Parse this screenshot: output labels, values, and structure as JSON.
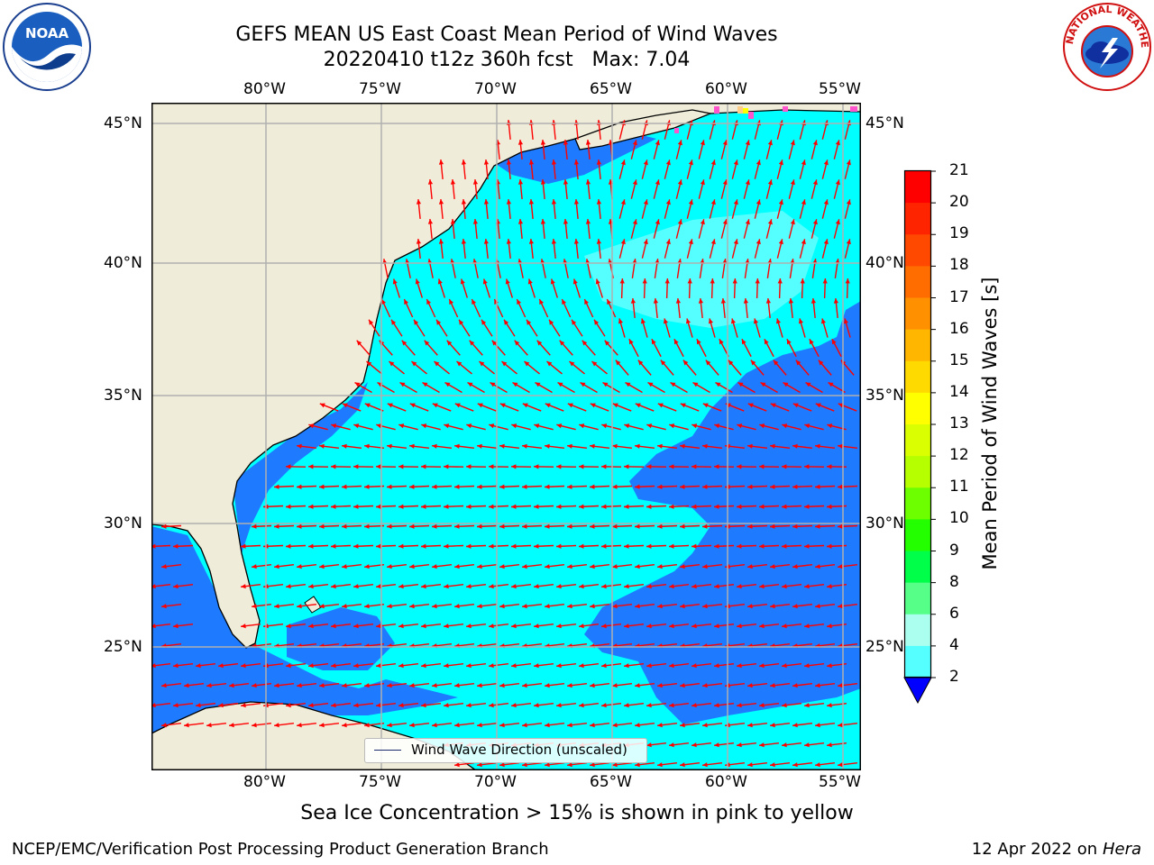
{
  "title_line1": "GEFS MEAN US East Coast Mean Period of Wind Waves",
  "title_line2": "20220410 t12z 360h fcst   Max: 7.04",
  "lon_labels": [
    "80°W",
    "75°W",
    "70°W",
    "65°W",
    "60°W",
    "55°W"
  ],
  "lat_labels": [
    "45°N",
    "40°N",
    "35°N",
    "30°N",
    "25°N"
  ],
  "colorbar": {
    "label": "Mean Period of Wind Waves [s]",
    "ticks": [
      "21",
      "20",
      "19",
      "18",
      "17",
      "16",
      "15",
      "14",
      "13",
      "12",
      "11",
      "10",
      "9",
      "8",
      "6",
      "4",
      "2"
    ],
    "colors": [
      "#ff0000",
      "#ff2400",
      "#ff4800",
      "#ff6d00",
      "#ff9100",
      "#ffb600",
      "#ffda00",
      "#ffff00",
      "#daff00",
      "#b6ff00",
      "#6dff00",
      "#24ff00",
      "#00ff48",
      "#55ff88",
      "#aaffee",
      "#55ffff",
      "#00ffff",
      "#1e7bff"
    ],
    "extend_color": "#0000ff"
  },
  "legend": {
    "label": "Wind Wave Direction (unscaled)"
  },
  "sea_ice_note": "Sea Ice Concentration > 15% is shown in pink to yellow",
  "footer": {
    "left": "NCEP/EMC/Verification Post Processing Product Generation Branch",
    "right_date": "12 Apr 2022 on ",
    "right_host": "Hera"
  },
  "logos": {
    "left": "NOAA",
    "right": "NATIONAL WEATHER SERVICE"
  },
  "colors": {
    "land": "#efedda",
    "ocean_bright": "#00ffff",
    "ocean_dark": "#1e7bff",
    "ocean_light": "#55ffff",
    "arrow": "#ff0000",
    "grid": "#b0b0b0"
  }
}
